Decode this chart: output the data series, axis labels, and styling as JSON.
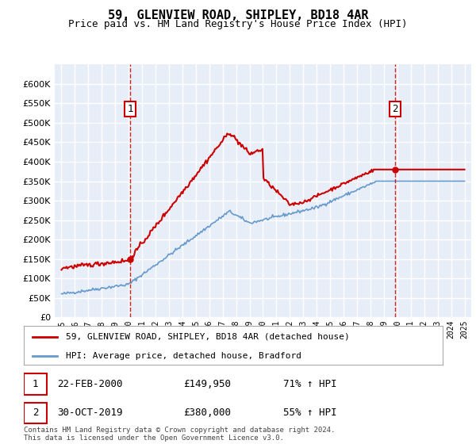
{
  "title": "59, GLENVIEW ROAD, SHIPLEY, BD18 4AR",
  "subtitle": "Price paid vs. HM Land Registry's House Price Index (HPI)",
  "ylim": [
    0,
    650000
  ],
  "yticks": [
    0,
    50000,
    100000,
    150000,
    200000,
    250000,
    300000,
    350000,
    400000,
    450000,
    500000,
    550000,
    600000
  ],
  "bg_color": "#e8eef8",
  "grid_color": "#ffffff",
  "red_line_color": "#cc0000",
  "blue_line_color": "#6699cc",
  "annotation1": {
    "label": "1",
    "x_year": 2000.13,
    "y_value": 149950,
    "date": "22-FEB-2000",
    "price": "£149,950",
    "hpi_text": "71% ↑ HPI"
  },
  "annotation2": {
    "label": "2",
    "x_year": 2019.83,
    "y_value": 380000,
    "date": "30-OCT-2019",
    "price": "£380,000",
    "hpi_text": "55% ↑ HPI"
  },
  "legend_red": "59, GLENVIEW ROAD, SHIPLEY, BD18 4AR (detached house)",
  "legend_blue": "HPI: Average price, detached house, Bradford",
  "footer": "Contains HM Land Registry data © Crown copyright and database right 2024.\nThis data is licensed under the Open Government Licence v3.0.",
  "vline1_x": 2000.13,
  "vline2_x": 2019.83,
  "xlim_start": 1994.5,
  "xlim_end": 2025.5
}
